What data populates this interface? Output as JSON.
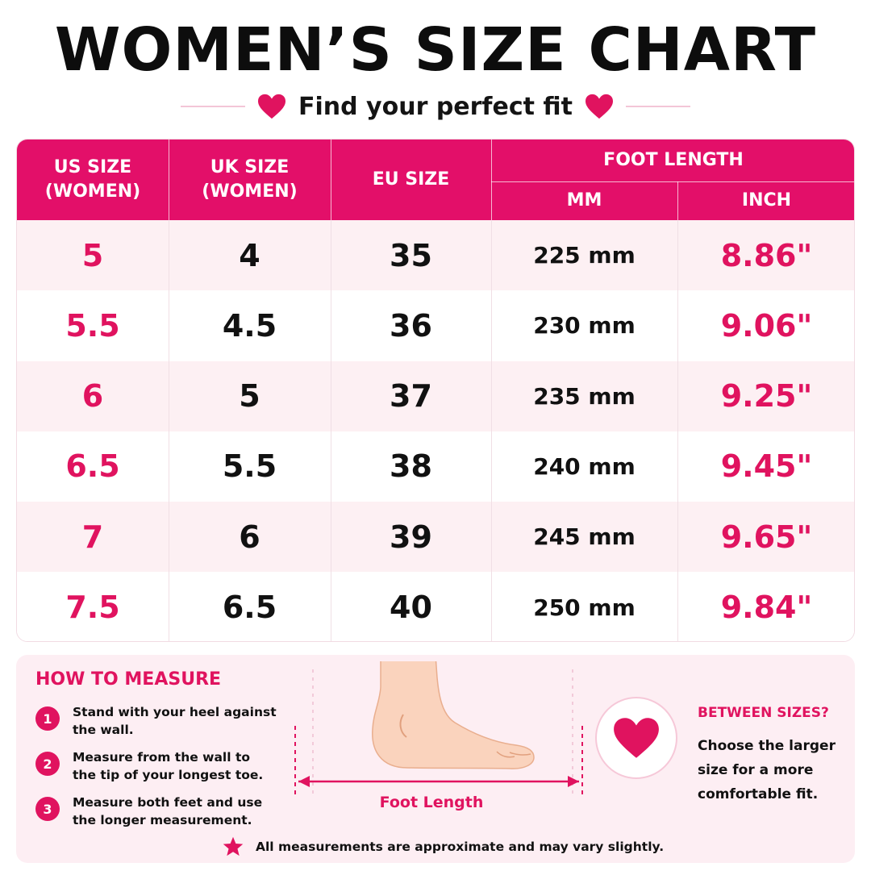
{
  "title": "WOMEN’S SIZE CHART",
  "subtitle": "Find your perfect fit",
  "table": {
    "headers": {
      "us": [
        "US SIZE",
        "(WOMEN)"
      ],
      "uk": [
        "UK SIZE",
        "(WOMEN)"
      ],
      "eu": "EU SIZE",
      "foot_length": "FOOT LENGTH",
      "mm": "MM",
      "inch": "INCH"
    },
    "rows": [
      {
        "us": "5",
        "uk": "4",
        "eu": "35",
        "mm": "225 mm",
        "inch": "8.86\""
      },
      {
        "us": "5.5",
        "uk": "4.5",
        "eu": "36",
        "mm": "230 mm",
        "inch": "9.06\""
      },
      {
        "us": "6",
        "uk": "5",
        "eu": "37",
        "mm": "235 mm",
        "inch": "9.25\""
      },
      {
        "us": "6.5",
        "uk": "5.5",
        "eu": "38",
        "mm": "240 mm",
        "inch": "9.45\""
      },
      {
        "us": "7",
        "uk": "6",
        "eu": "39",
        "mm": "245 mm",
        "inch": "9.65\""
      },
      {
        "us": "7.5",
        "uk": "6.5",
        "eu": "40",
        "mm": "250 mm",
        "inch": "9.84\""
      }
    ]
  },
  "how_to_measure": {
    "title": "HOW TO MEASURE",
    "steps": [
      {
        "num": "1",
        "text": "Stand with your heel against the wall."
      },
      {
        "num": "2",
        "text": "Measure from the wall to the tip of your longest toe."
      },
      {
        "num": "3",
        "text": "Measure both feet and use the longer measurement."
      }
    ]
  },
  "foot_label": "Foot Length",
  "between_sizes": {
    "title": "BETWEEN SIZES?",
    "text": "Choose the larger size for a more comfortable fit."
  },
  "note": "All measurements are approximate and may vary slightly.",
  "colors": {
    "accent": "#e30f69",
    "row_tint": "#fdf0f3",
    "panel": "#fdeef3"
  },
  "icons": {
    "heart": "heart-icon",
    "star": "star-icon",
    "foot": "foot-illustration"
  }
}
